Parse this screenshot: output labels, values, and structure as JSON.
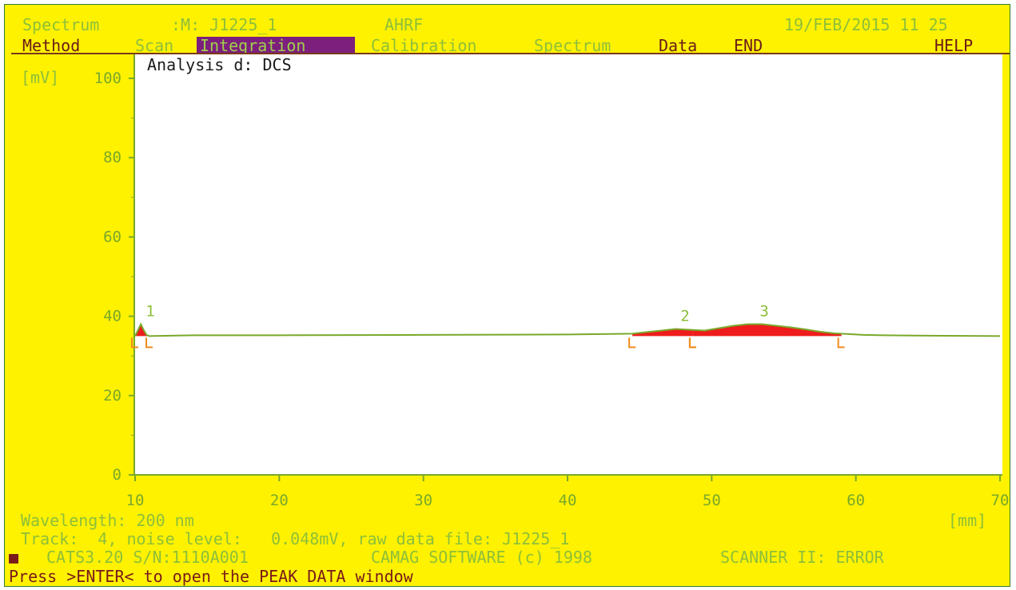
{
  "header": {
    "title": "Spectrum",
    "method": ":M: J1225_1",
    "mode": "AHRF",
    "datetime": "19/FEB/2015 11 25"
  },
  "menu": {
    "items": [
      {
        "label": "Method",
        "active": false
      },
      {
        "label": "Scan",
        "active": false
      },
      {
        "label": "Integration",
        "active": true
      },
      {
        "label": "Calibration",
        "active": false
      },
      {
        "label": "Spectrum",
        "active": false
      },
      {
        "label": "Data",
        "active": false
      },
      {
        "label": "END",
        "active": false
      },
      {
        "label": "HELP",
        "active": false
      }
    ]
  },
  "plot": {
    "analysis_label": "Analysis d: DCS",
    "y_unit": "[mV]",
    "x_unit": "[mm]"
  },
  "chart_data": {
    "type": "line",
    "xlim": [
      10,
      70
    ],
    "ylim": [
      0,
      100
    ],
    "x_ticks": [
      "10",
      "20",
      "30",
      "40",
      "50",
      "60",
      "70"
    ],
    "y_ticks": [
      "0",
      "20",
      "40",
      "60",
      "80",
      "100"
    ],
    "baseline": 35,
    "series": [
      {
        "x": [
          10.0,
          10.2,
          10.4,
          10.6,
          10.8,
          11.0,
          14,
          20,
          30,
          40,
          44.5,
          45.5,
          46.5,
          47.5,
          48.5,
          49.5,
          50.5,
          51.5,
          52.5,
          53.5,
          54.5,
          55.5,
          56.5,
          57.5,
          58.5,
          59.5,
          60.5,
          62,
          65,
          70
        ],
        "y": [
          35,
          36.5,
          38,
          36.5,
          35.3,
          35,
          35.2,
          35.2,
          35.3,
          35.4,
          35.6,
          36.0,
          36.4,
          36.8,
          36.6,
          36.4,
          37.0,
          37.6,
          38.0,
          38.0,
          37.6,
          37.2,
          36.7,
          36.1,
          35.7,
          35.5,
          35.3,
          35.2,
          35.1,
          35
        ]
      }
    ],
    "peaks": [
      {
        "label": "1",
        "x": 10.4,
        "y": 38,
        "start": 10.0,
        "end": 11.0
      },
      {
        "label": "2",
        "x": 47.5,
        "y": 36.8,
        "start": 44.5,
        "end": 48.7
      },
      {
        "label": "3",
        "x": 53.0,
        "y": 38.0,
        "start": 48.7,
        "end": 59.0
      }
    ]
  },
  "footer": {
    "wavelength": "Wavelength: 200 nm",
    "track_info": "Track:  4, noise level:   0.048mV, raw data file: J1225_1",
    "cats_version": "CATS3.20 S/N:1110A001",
    "software": "CAMAG SOFTWARE (c) 1998",
    "scanner_status": "SCANNER II: ERROR",
    "prompt": "Press >ENTER< to open the PEAK DATA window"
  },
  "colors": {
    "background": "#fff200",
    "plot_bg": "#ffffff",
    "trace": "#7aa82a",
    "peak_fill": "#ee1c1c",
    "marker": "#f08c1e",
    "active_menu": "#7d1f7d"
  }
}
